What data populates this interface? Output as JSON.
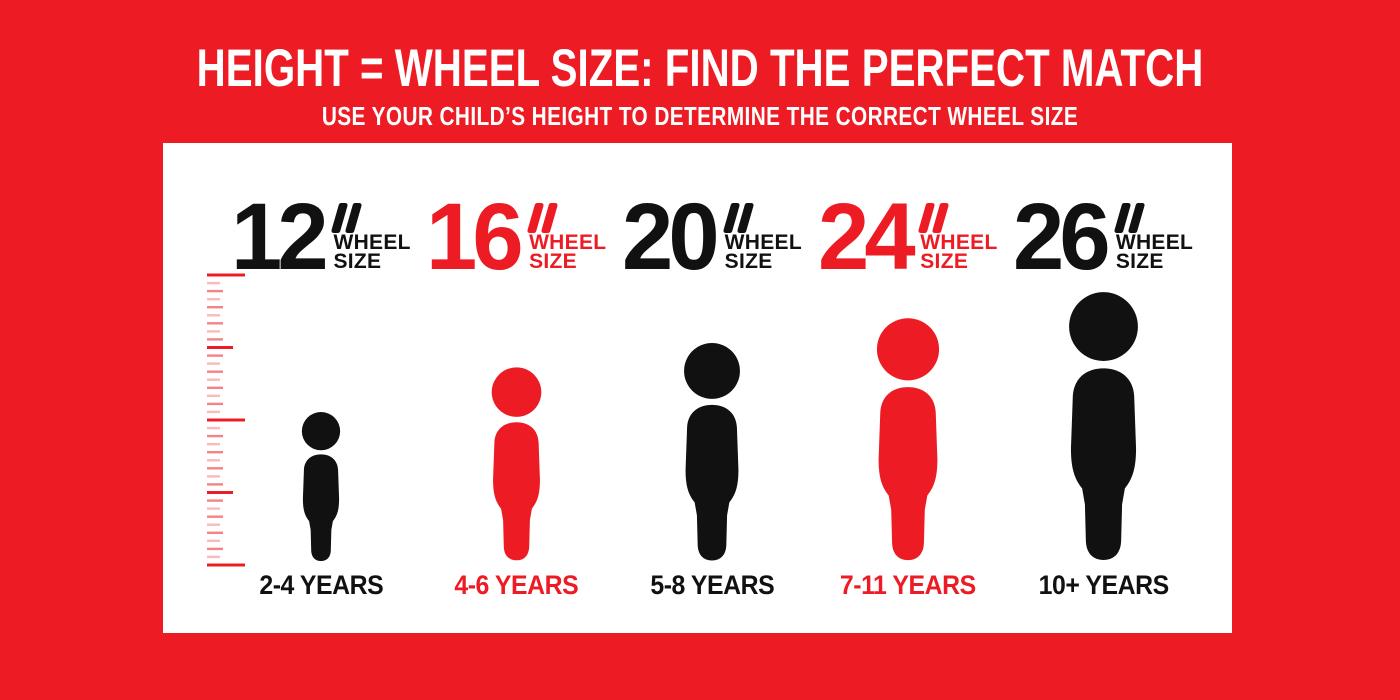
{
  "page": {
    "background": "#ED1C24",
    "card_background": "#FFFFFF"
  },
  "header": {
    "title": "HEIGHT = WHEEL SIZE: FIND THE PERFECT MATCH",
    "subtitle": "USE YOUR CHILD’S HEIGHT TO DETERMINE THE CORRECT WHEEL SIZE",
    "text_color": "#FFFFFF"
  },
  "palette": {
    "black": "#111111",
    "red": "#ED1C24",
    "white": "#FFFFFF"
  },
  "ruler": {
    "color": "#ED1C24",
    "tick_count": 37,
    "major_every": 9,
    "long_every": 18
  },
  "columns": [
    {
      "wheel_size": "12",
      "inch_mark": "”",
      "wheel_word": "WHEEL",
      "size_word": "SIZE",
      "age_range": "2-4 YEARS",
      "color": "#111111",
      "figure_height": 150
    },
    {
      "wheel_size": "16",
      "inch_mark": "”",
      "wheel_word": "WHEEL",
      "size_word": "SIZE",
      "age_range": "4-6 YEARS",
      "color": "#ED1C24",
      "figure_height": 195
    },
    {
      "wheel_size": "20",
      "inch_mark": "”",
      "wheel_word": "WHEEL",
      "size_word": "SIZE",
      "age_range": "5-8 YEARS",
      "color": "#111111",
      "figure_height": 219
    },
    {
      "wheel_size": "24",
      "inch_mark": "”",
      "wheel_word": "WHEEL",
      "size_word": "SIZE",
      "age_range": "7-11 YEARS",
      "color": "#ED1C24",
      "figure_height": 244
    },
    {
      "wheel_size": "26",
      "inch_mark": "”",
      "wheel_word": "WHEEL",
      "size_word": "SIZE",
      "age_range": "10+ YEARS",
      "color": "#111111",
      "figure_height": 270
    }
  ]
}
